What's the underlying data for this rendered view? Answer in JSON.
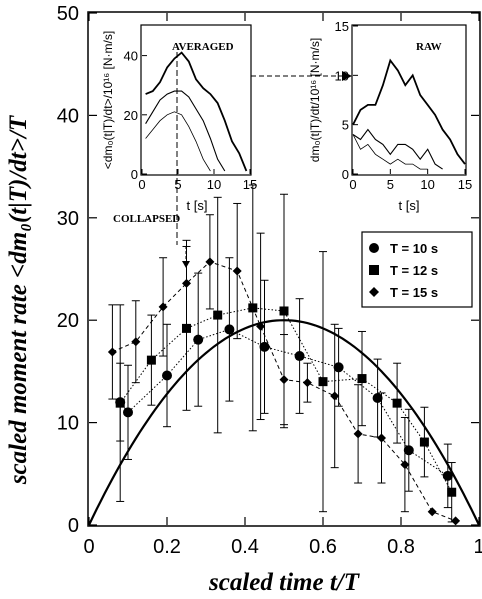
{
  "chart_data": [
    {
      "type": "scatter",
      "xlabel": "scaled time t/T",
      "ylabel": "scaled moment rate <dm₀(t|T)/dt>/T",
      "xlim": [
        0,
        1
      ],
      "ylim": [
        0,
        50
      ],
      "x_ticks": [
        "0",
        "0.2",
        "0.4",
        "0.6",
        "0.8",
        "1"
      ],
      "y_ticks": [
        "0",
        "10",
        "20",
        "30",
        "40",
        "50"
      ],
      "legend_position": "center-right",
      "annotation": "COLLAPSED",
      "curve": {
        "type": "parabola",
        "formula": "y = 80 x (1 - x)",
        "peak": [
          0.5,
          20
        ]
      },
      "series": [
        {
          "name": "T = 10 s",
          "marker": "circle",
          "line": "dotted",
          "x": [
            0.08,
            0.1,
            0.2,
            0.28,
            0.36,
            0.45,
            0.54,
            0.64,
            0.74,
            0.82,
            0.92
          ],
          "y": [
            12.0,
            11.0,
            14.6,
            18.1,
            19.1,
            17.4,
            16.5,
            15.4,
            12.4,
            7.3,
            4.8
          ],
          "err": [
            3.8,
            4.6,
            5.0,
            6.5,
            7.0,
            6.5,
            5.6,
            3.8,
            3.8,
            4.0,
            3.1
          ]
        },
        {
          "name": "T = 12 s",
          "marker": "square",
          "line": "dotted",
          "x": [
            0.08,
            0.16,
            0.25,
            0.33,
            0.42,
            0.5,
            0.6,
            0.7,
            0.79,
            0.86,
            0.93
          ],
          "y": [
            11.9,
            16.1,
            19.2,
            20.5,
            21.2,
            20.9,
            14.0,
            14.3,
            11.9,
            8.1,
            3.2
          ],
          "err": [
            9.6,
            4.4,
            8.0,
            11.5,
            12.0,
            11.4,
            12.7,
            4.6,
            3.9,
            3.4,
            2.9
          ]
        },
        {
          "name": "T = 15 s",
          "marker": "diamond",
          "line": "dashed",
          "x": [
            0.06,
            0.12,
            0.19,
            0.25,
            0.31,
            0.38,
            0.44,
            0.5,
            0.56,
            0.63,
            0.69,
            0.75,
            0.81,
            0.88,
            0.94
          ],
          "y": [
            16.9,
            17.9,
            21.3,
            23.6,
            25.7,
            24.8,
            19.4,
            14.2,
            13.9,
            12.6,
            8.9,
            8.5,
            5.9,
            1.3,
            0.4
          ],
          "err": [
            4.6,
            4.0,
            4.8,
            4.2,
            4.6,
            6.6,
            9.1,
            4.4,
            1.9,
            7.0,
            4.8,
            4.4,
            4.6,
            0,
            0
          ]
        }
      ]
    },
    {
      "type": "line",
      "title": "AVERAGED",
      "xlabel": "t [s]",
      "ylabel": "<dm₀(t|T)/dt>/10¹⁶ [N·m/s]",
      "xlim": [
        0,
        15
      ],
      "ylim": [
        0,
        50
      ],
      "x_ticks": [
        "0",
        "5",
        "10",
        "15"
      ],
      "y_ticks": [
        "0",
        "20",
        "40"
      ],
      "series": [
        {
          "x": [
            0.5,
            1.5,
            2.5,
            3.5,
            4.5,
            5.5,
            6.5,
            7.5,
            8.5,
            9.5,
            10.5,
            11.5,
            12.5,
            13.5,
            14.5
          ],
          "y": [
            27,
            28,
            31,
            36,
            39,
            41,
            38,
            32,
            29,
            27,
            24,
            18,
            11,
            7,
            1
          ]
        },
        {
          "x": [
            0.5,
            1.5,
            2.5,
            3.5,
            4.5,
            5.5,
            6.5,
            7.5,
            8.5,
            9.5,
            10.5,
            11.5
          ],
          "y": [
            17,
            21,
            25,
            27,
            28,
            28,
            26,
            22,
            18,
            12,
            5,
            1
          ]
        },
        {
          "x": [
            0.5,
            1.5,
            2.5,
            3.5,
            4.5,
            5.5,
            6.5,
            7.5,
            8.5,
            9.5
          ],
          "y": [
            12,
            15,
            18,
            20,
            21,
            20,
            16,
            11,
            5,
            1
          ]
        }
      ]
    },
    {
      "type": "line",
      "title": "RAW",
      "xlabel": "t [s]",
      "ylabel": "dm₀(t|T)/dt/10¹⁶ [N·m/s]",
      "xlim": [
        0,
        15
      ],
      "ylim": [
        0,
        15
      ],
      "x_ticks": [
        "0",
        "5",
        "10",
        "15"
      ],
      "y_ticks": [
        "0",
        "5",
        "10",
        "15"
      ],
      "series": [
        {
          "x": [
            0,
            1,
            2,
            3,
            4,
            5,
            6,
            7,
            8,
            9,
            10,
            11,
            12,
            13,
            14,
            15
          ],
          "y": [
            5,
            6.5,
            7,
            7,
            9,
            11.5,
            10.5,
            9,
            10,
            8,
            7,
            6,
            4.5,
            3.5,
            2,
            1
          ]
        },
        {
          "x": [
            0,
            1,
            2,
            3,
            4,
            5,
            6,
            7,
            8,
            9,
            10,
            11,
            12
          ],
          "y": [
            4,
            3.5,
            4.5,
            3.5,
            3,
            2,
            3,
            3,
            2.5,
            1.5,
            2.5,
            1,
            0.5
          ]
        },
        {
          "x": [
            0,
            1,
            2,
            3,
            4,
            5,
            6,
            7,
            8,
            9,
            10
          ],
          "y": [
            4,
            2.5,
            3,
            2,
            1.5,
            1,
            1.5,
            1,
            1,
            0.5,
            0.5
          ]
        }
      ]
    }
  ]
}
